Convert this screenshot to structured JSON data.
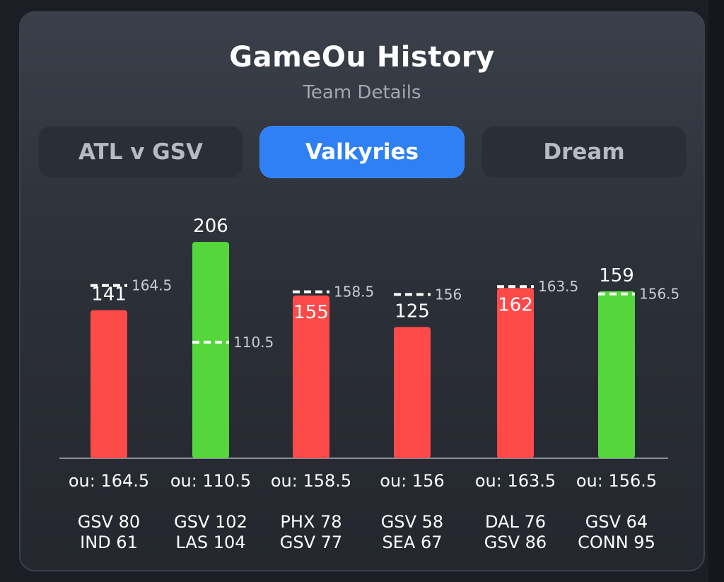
{
  "header": {
    "title": "GameOu History",
    "subtitle": "Team Details"
  },
  "tabs": [
    {
      "label": "ATL v GSV",
      "active": false
    },
    {
      "label": "Valkyries",
      "active": true
    },
    {
      "label": "Dream",
      "active": false
    }
  ],
  "colors": {
    "over": "#54d63c",
    "under": "#ff4a4a",
    "tab_active": "#2f7ff5"
  },
  "chart_data": {
    "type": "bar",
    "title": "",
    "xlabel": "",
    "ylabel": "",
    "ylim": [
      0,
      240
    ],
    "grid": false,
    "legend": "none",
    "games": [
      {
        "total": 141,
        "ou": 164.5,
        "ou_label": "ou: 164.5",
        "team1": "GSV 80",
        "team2": "IND 61",
        "result": "under"
      },
      {
        "total": 206,
        "ou": 110.5,
        "ou_label": "ou: 110.5",
        "team1": "GSV 102",
        "team2": "LAS 104",
        "result": "over"
      },
      {
        "total": 155,
        "ou": 158.5,
        "ou_label": "ou: 158.5",
        "team1": "PHX 78",
        "team2": "GSV 77",
        "result": "under"
      },
      {
        "total": 125,
        "ou": 156,
        "ou_label": "ou: 156",
        "team1": "GSV 58",
        "team2": "SEA 67",
        "result": "under"
      },
      {
        "total": 162,
        "ou": 163.5,
        "ou_label": "ou: 163.5",
        "team1": "DAL 76",
        "team2": "GSV 86",
        "result": "under"
      },
      {
        "total": 159,
        "ou": 156.5,
        "ou_label": "ou: 156.5",
        "team1": "GSV 64",
        "team2": "CONN 95",
        "result": "over"
      }
    ]
  }
}
